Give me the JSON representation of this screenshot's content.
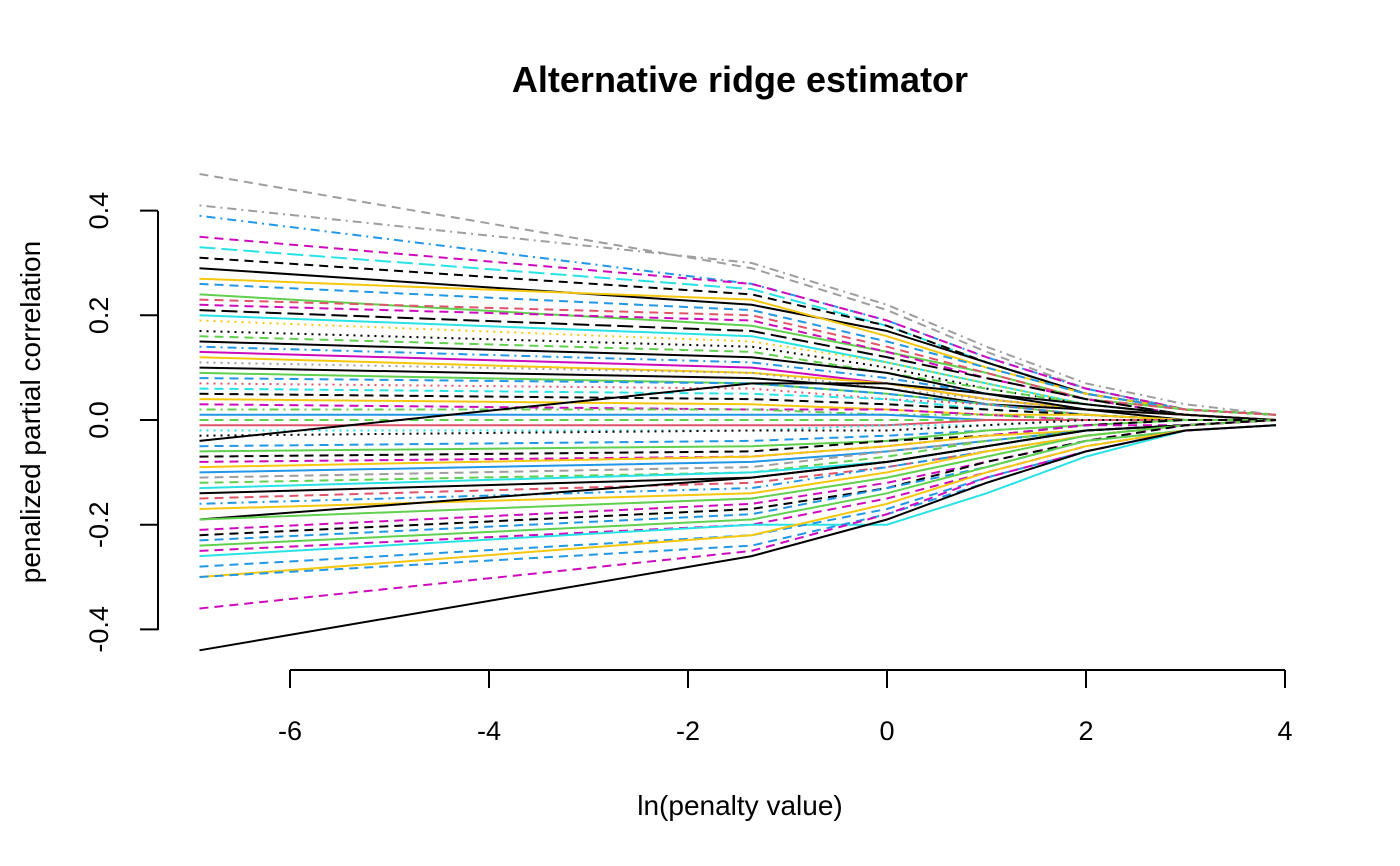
{
  "chart_data": {
    "type": "line",
    "title": "Alternative ridge estimator",
    "xlabel": "ln(penalty value)",
    "ylabel": "penalized partial correlation",
    "xlim": [
      -7.0,
      4.0
    ],
    "ylim": [
      -0.44,
      0.47
    ],
    "x_ticks": [
      -6,
      -4,
      -2,
      0,
      2,
      4
    ],
    "x_tick_labels": [
      "-6",
      "-4",
      "-2",
      "0",
      "2",
      "4"
    ],
    "y_ticks": [
      -0.4,
      -0.2,
      0.0,
      0.2,
      0.4
    ],
    "y_tick_labels": [
      "-0.4",
      "-0.2",
      "0.0",
      "0.2",
      "0.4"
    ],
    "grid": false,
    "legend": "none",
    "x": [
      -6.91,
      -1.36,
      0,
      1,
      2,
      3,
      3.91
    ],
    "palette": [
      "#000000",
      "#DF536B",
      "#61D04F",
      "#2297E6",
      "#28E2E5",
      "#CD0BBC",
      "#F5C710",
      "#9E9E9E"
    ],
    "series": [
      {
        "values": [
          0.47,
          0.29,
          0.21,
          0.13,
          0.06,
          0.02,
          0.01
        ],
        "color": "#9E9E9E",
        "dash": "dashed"
      },
      {
        "values": [
          0.41,
          0.3,
          0.22,
          0.14,
          0.07,
          0.03,
          0.01
        ],
        "color": "#9E9E9E",
        "dash": "dotdash"
      },
      {
        "values": [
          0.39,
          0.26,
          0.19,
          0.12,
          0.06,
          0.02,
          0.01
        ],
        "color": "#2297E6",
        "dash": "dotdash"
      },
      {
        "values": [
          0.35,
          0.26,
          0.19,
          0.12,
          0.06,
          0.02,
          0.01
        ],
        "color": "#CD0BBC",
        "dash": "dashed"
      },
      {
        "values": [
          0.33,
          0.25,
          0.18,
          0.11,
          0.05,
          0.02,
          0.01
        ],
        "color": "#28E2E5",
        "dash": "longdash"
      },
      {
        "values": [
          0.31,
          0.24,
          0.18,
          0.11,
          0.05,
          0.02,
          0.01
        ],
        "color": "#000000",
        "dash": "dashed"
      },
      {
        "values": [
          0.29,
          0.22,
          0.17,
          0.11,
          0.05,
          0.02,
          0.01
        ],
        "color": "#000000",
        "dash": "solid"
      },
      {
        "values": [
          0.27,
          0.23,
          0.16,
          0.1,
          0.05,
          0.02,
          0.01
        ],
        "color": "#F5C710",
        "dash": "solid"
      },
      {
        "values": [
          0.26,
          0.21,
          0.15,
          0.1,
          0.05,
          0.02,
          0.01
        ],
        "color": "#2297E6",
        "dash": "dashed"
      },
      {
        "values": [
          0.24,
          0.18,
          0.13,
          0.09,
          0.04,
          0.02,
          0.01
        ],
        "color": "#61D04F",
        "dash": "solid"
      },
      {
        "values": [
          0.23,
          0.2,
          0.14,
          0.09,
          0.04,
          0.02,
          0.01
        ],
        "color": "#DF536B",
        "dash": "dashed"
      },
      {
        "values": [
          0.22,
          0.19,
          0.13,
          0.08,
          0.04,
          0.01,
          0.0
        ],
        "color": "#CD0BBC",
        "dash": "dashed"
      },
      {
        "values": [
          0.21,
          0.17,
          0.12,
          0.08,
          0.04,
          0.01,
          0.0
        ],
        "color": "#000000",
        "dash": "longdash"
      },
      {
        "values": [
          0.2,
          0.16,
          0.11,
          0.07,
          0.03,
          0.01,
          0.0
        ],
        "color": "#28E2E5",
        "dash": "solid"
      },
      {
        "values": [
          0.19,
          0.15,
          0.11,
          0.07,
          0.03,
          0.01,
          0.0
        ],
        "color": "#F5C710",
        "dash": "dotted"
      },
      {
        "values": [
          0.17,
          0.14,
          0.1,
          0.06,
          0.03,
          0.01,
          0.0
        ],
        "color": "#000000",
        "dash": "dotted"
      },
      {
        "values": [
          0.16,
          0.13,
          0.09,
          0.06,
          0.03,
          0.01,
          0.0
        ],
        "color": "#61D04F",
        "dash": "dashed"
      },
      {
        "values": [
          0.15,
          0.12,
          0.09,
          0.05,
          0.03,
          0.01,
          0.0
        ],
        "color": "#000000",
        "dash": "solid"
      },
      {
        "values": [
          0.14,
          0.11,
          0.08,
          0.05,
          0.02,
          0.01,
          0.0
        ],
        "color": "#2297E6",
        "dash": "dotdash"
      },
      {
        "values": [
          0.13,
          0.1,
          0.07,
          0.04,
          0.02,
          0.01,
          0.0
        ],
        "color": "#CD0BBC",
        "dash": "solid"
      },
      {
        "values": [
          0.12,
          0.09,
          0.07,
          0.04,
          0.02,
          0.01,
          0.0
        ],
        "color": "#F5C710",
        "dash": "solid"
      },
      {
        "values": [
          0.11,
          0.09,
          0.06,
          0.04,
          0.02,
          0.01,
          0.0
        ],
        "color": "#9E9E9E",
        "dash": "dotted"
      },
      {
        "values": [
          0.1,
          0.08,
          0.06,
          0.03,
          0.02,
          0.0,
          0.0
        ],
        "color": "#000000",
        "dash": "solid"
      },
      {
        "values": [
          0.09,
          0.07,
          0.05,
          0.03,
          0.01,
          0.0,
          0.0
        ],
        "color": "#61D04F",
        "dash": "solid"
      },
      {
        "values": [
          0.08,
          0.07,
          0.05,
          0.03,
          0.01,
          0.0,
          0.0
        ],
        "color": "#2297E6",
        "dash": "dashed"
      },
      {
        "values": [
          0.07,
          0.06,
          0.04,
          0.03,
          0.01,
          0.0,
          0.0
        ],
        "color": "#DF536B",
        "dash": "dotted"
      },
      {
        "values": [
          0.06,
          0.05,
          0.04,
          0.02,
          0.01,
          0.0,
          0.0
        ],
        "color": "#28E2E5",
        "dash": "dashed"
      },
      {
        "values": [
          0.05,
          0.04,
          0.03,
          0.02,
          0.01,
          0.0,
          0.0
        ],
        "color": "#000000",
        "dash": "dashed"
      },
      {
        "values": [
          0.04,
          0.03,
          0.02,
          0.01,
          0.01,
          0.0,
          0.0
        ],
        "color": "#F5C710",
        "dash": "solid"
      },
      {
        "values": [
          0.03,
          0.02,
          0.02,
          0.01,
          0.0,
          0.0,
          0.0
        ],
        "color": "#CD0BBC",
        "dash": "dashed"
      },
      {
        "values": [
          0.02,
          0.02,
          0.01,
          0.01,
          0.0,
          0.0,
          0.0
        ],
        "color": "#61D04F",
        "dash": "dotdash"
      },
      {
        "values": [
          0.01,
          0.01,
          0.01,
          0.0,
          0.0,
          0.0,
          0.0
        ],
        "color": "#2297E6",
        "dash": "solid"
      },
      {
        "values": [
          0.0,
          0.0,
          0.0,
          0.0,
          0.0,
          0.0,
          0.0
        ],
        "color": "#61D04F",
        "dash": "dashed"
      },
      {
        "values": [
          -0.01,
          -0.01,
          -0.01,
          0.0,
          0.0,
          0.0,
          0.0
        ],
        "color": "#DF536B",
        "dash": "solid"
      },
      {
        "values": [
          -0.02,
          -0.02,
          -0.01,
          -0.01,
          0.0,
          0.0,
          0.0
        ],
        "color": "#28E2E5",
        "dash": "dotted"
      },
      {
        "values": [
          -0.03,
          -0.02,
          -0.02,
          -0.01,
          0.0,
          0.0,
          0.0
        ],
        "color": "#000000",
        "dash": "dotted"
      },
      {
        "values": [
          -0.04,
          0.07,
          0.07,
          0.05,
          0.02,
          0.01,
          0.0
        ],
        "color": "#000000",
        "dash": "solid"
      },
      {
        "values": [
          -0.05,
          -0.04,
          -0.03,
          -0.02,
          -0.01,
          0.0,
          0.0
        ],
        "color": "#2297E6",
        "dash": "dashed"
      },
      {
        "values": [
          -0.06,
          -0.05,
          -0.04,
          -0.02,
          -0.01,
          0.0,
          0.0
        ],
        "color": "#61D04F",
        "dash": "solid"
      },
      {
        "values": [
          -0.07,
          -0.06,
          -0.04,
          -0.03,
          -0.01,
          0.0,
          0.0
        ],
        "color": "#000000",
        "dash": "dashed"
      },
      {
        "values": [
          -0.08,
          -0.07,
          -0.05,
          -0.03,
          -0.01,
          -0.01,
          0.0
        ],
        "color": "#CD0BBC",
        "dash": "dashed"
      },
      {
        "values": [
          -0.09,
          -0.07,
          -0.05,
          -0.03,
          -0.02,
          -0.01,
          0.0
        ],
        "color": "#F5C710",
        "dash": "solid"
      },
      {
        "values": [
          -0.1,
          -0.08,
          -0.06,
          -0.04,
          -0.02,
          -0.01,
          0.0
        ],
        "color": "#2297E6",
        "dash": "solid"
      },
      {
        "values": [
          -0.11,
          -0.09,
          -0.06,
          -0.04,
          -0.02,
          -0.01,
          0.0
        ],
        "color": "#9E9E9E",
        "dash": "dashed"
      },
      {
        "values": [
          -0.12,
          -0.1,
          -0.07,
          -0.04,
          -0.02,
          -0.01,
          0.0
        ],
        "color": "#61D04F",
        "dash": "dashed"
      },
      {
        "values": [
          -0.13,
          -0.1,
          -0.08,
          -0.05,
          -0.02,
          -0.01,
          0.0
        ],
        "color": "#28E2E5",
        "dash": "solid"
      },
      {
        "values": [
          -0.14,
          -0.11,
          -0.08,
          -0.05,
          -0.02,
          -0.01,
          0.0
        ],
        "color": "#000000",
        "dash": "solid"
      },
      {
        "values": [
          -0.15,
          -0.12,
          -0.09,
          -0.06,
          -0.03,
          -0.01,
          0.0
        ],
        "color": "#DF536B",
        "dash": "dashed"
      },
      {
        "values": [
          -0.16,
          -0.13,
          -0.09,
          -0.06,
          -0.03,
          -0.01,
          0.0
        ],
        "color": "#2297E6",
        "dash": "dotdash"
      },
      {
        "values": [
          -0.17,
          -0.14,
          -0.1,
          -0.06,
          -0.03,
          -0.01,
          0.0
        ],
        "color": "#F5C710",
        "dash": "solid"
      },
      {
        "values": [
          -0.19,
          -0.11,
          -0.08,
          -0.05,
          -0.02,
          -0.01,
          0.0
        ],
        "color": "#000000",
        "dash": "solid"
      },
      {
        "values": [
          -0.19,
          -0.15,
          -0.11,
          -0.07,
          -0.03,
          -0.01,
          0.0
        ],
        "color": "#61D04F",
        "dash": "solid"
      },
      {
        "values": [
          -0.21,
          -0.16,
          -0.12,
          -0.08,
          -0.04,
          -0.01,
          0.0
        ],
        "color": "#CD0BBC",
        "dash": "dashed"
      },
      {
        "values": [
          -0.22,
          -0.17,
          -0.13,
          -0.08,
          -0.04,
          -0.01,
          0.0
        ],
        "color": "#000000",
        "dash": "dashed"
      },
      {
        "values": [
          -0.23,
          -0.18,
          -0.13,
          -0.09,
          -0.04,
          -0.02,
          -0.01
        ],
        "color": "#2297E6",
        "dash": "dashed"
      },
      {
        "values": [
          -0.24,
          -0.19,
          -0.14,
          -0.09,
          -0.04,
          -0.02,
          -0.01
        ],
        "color": "#61D04F",
        "dash": "solid"
      },
      {
        "values": [
          -0.25,
          -0.2,
          -0.15,
          -0.1,
          -0.05,
          -0.02,
          -0.01
        ],
        "color": "#CD0BBC",
        "dash": "dashed"
      },
      {
        "values": [
          -0.26,
          -0.2,
          -0.2,
          -0.14,
          -0.07,
          -0.02,
          -0.01
        ],
        "color": "#28E2E5",
        "dash": "solid"
      },
      {
        "values": [
          -0.28,
          -0.22,
          -0.17,
          -0.11,
          -0.06,
          -0.02,
          -0.01
        ],
        "color": "#2297E6",
        "dash": "dashed"
      },
      {
        "values": [
          -0.3,
          -0.22,
          -0.16,
          -0.1,
          -0.05,
          -0.02,
          -0.01
        ],
        "color": "#F5C710",
        "dash": "solid"
      },
      {
        "values": [
          -0.3,
          -0.24,
          -0.18,
          -0.12,
          -0.06,
          -0.02,
          -0.01
        ],
        "color": "#2297E6",
        "dash": "dashed"
      },
      {
        "values": [
          -0.36,
          -0.25,
          -0.18,
          -0.11,
          -0.06,
          -0.02,
          -0.01
        ],
        "color": "#CD0BBC",
        "dash": "dashed"
      },
      {
        "values": [
          -0.44,
          -0.26,
          -0.19,
          -0.12,
          -0.06,
          -0.02,
          -0.01
        ],
        "color": "#000000",
        "dash": "solid"
      }
    ]
  }
}
